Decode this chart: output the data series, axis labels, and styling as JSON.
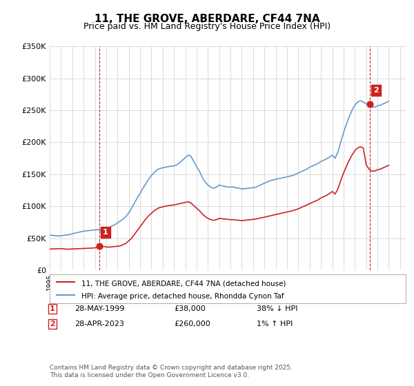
{
  "title": "11, THE GROVE, ABERDARE, CF44 7NA",
  "subtitle": "Price paid vs. HM Land Registry's House Price Index (HPI)",
  "ylabel": "",
  "xlabel": "",
  "ylim": [
    0,
    350000
  ],
  "xlim_start": 1995.0,
  "xlim_end": 2026.5,
  "yticks": [
    0,
    50000,
    100000,
    150000,
    200000,
    250000,
    300000,
    350000
  ],
  "ytick_labels": [
    "£0",
    "£50K",
    "£100K",
    "£150K",
    "£200K",
    "£250K",
    "£300K",
    "£350K"
  ],
  "hpi_color": "#6699cc",
  "price_color": "#cc2222",
  "vline_color": "#cc2222",
  "annotation_box_color": "#cc2222",
  "background_color": "#ffffff",
  "grid_color": "#cccccc",
  "legend_label_price": "11, THE GROVE, ABERDARE, CF44 7NA (detached house)",
  "legend_label_hpi": "HPI: Average price, detached house, Rhondda Cynon Taf",
  "sale1_date": "28-MAY-1999",
  "sale1_price": "£38,000",
  "sale1_note": "38% ↓ HPI",
  "sale1_year": 1999.41,
  "sale1_price_val": 38000,
  "sale2_date": "28-APR-2023",
  "sale2_price": "£260,000",
  "sale2_note": "1% ↑ HPI",
  "sale2_year": 2023.33,
  "sale2_price_val": 260000,
  "footnote": "Contains HM Land Registry data © Crown copyright and database right 2025.\nThis data is licensed under the Open Government Licence v3.0.",
  "hpi_years": [
    1995.0,
    1995.25,
    1995.5,
    1995.75,
    1996.0,
    1996.25,
    1996.5,
    1996.75,
    1997.0,
    1997.25,
    1997.5,
    1997.75,
    1998.0,
    1998.25,
    1998.5,
    1998.75,
    1999.0,
    1999.25,
    1999.5,
    1999.75,
    2000.0,
    2000.25,
    2000.5,
    2000.75,
    2001.0,
    2001.25,
    2001.5,
    2001.75,
    2002.0,
    2002.25,
    2002.5,
    2002.75,
    2003.0,
    2003.25,
    2003.5,
    2003.75,
    2004.0,
    2004.25,
    2004.5,
    2004.75,
    2005.0,
    2005.25,
    2005.5,
    2005.75,
    2006.0,
    2006.25,
    2006.5,
    2006.75,
    2007.0,
    2007.25,
    2007.5,
    2007.75,
    2008.0,
    2008.25,
    2008.5,
    2008.75,
    2009.0,
    2009.25,
    2009.5,
    2009.75,
    2010.0,
    2010.25,
    2010.5,
    2010.75,
    2011.0,
    2011.25,
    2011.5,
    2011.75,
    2012.0,
    2012.25,
    2012.5,
    2012.75,
    2013.0,
    2013.25,
    2013.5,
    2013.75,
    2014.0,
    2014.25,
    2014.5,
    2014.75,
    2015.0,
    2015.25,
    2015.5,
    2015.75,
    2016.0,
    2016.25,
    2016.5,
    2016.75,
    2017.0,
    2017.25,
    2017.5,
    2017.75,
    2018.0,
    2018.25,
    2018.5,
    2018.75,
    2019.0,
    2019.25,
    2019.5,
    2019.75,
    2020.0,
    2020.25,
    2020.5,
    2020.75,
    2021.0,
    2021.25,
    2021.5,
    2021.75,
    2022.0,
    2022.25,
    2022.5,
    2022.75,
    2023.0,
    2023.25,
    2023.5,
    2023.75,
    2024.0,
    2024.25,
    2024.5,
    2024.75,
    2025.0
  ],
  "hpi_values": [
    55000,
    54500,
    54000,
    53500,
    54000,
    54500,
    55000,
    55500,
    57000,
    58000,
    59000,
    60000,
    61000,
    61500,
    62000,
    62500,
    63000,
    63500,
    61500,
    63000,
    65000,
    67000,
    69000,
    71000,
    74000,
    77000,
    80000,
    84000,
    90000,
    97000,
    105000,
    113000,
    120000,
    128000,
    135000,
    142000,
    148000,
    153000,
    157000,
    159000,
    160000,
    161000,
    162000,
    162500,
    163000,
    165000,
    168000,
    172000,
    176000,
    180000,
    178000,
    170000,
    162000,
    155000,
    145000,
    138000,
    133000,
    130000,
    128000,
    130000,
    133000,
    132000,
    131000,
    130000,
    130000,
    130000,
    129000,
    128000,
    127000,
    127500,
    128000,
    128500,
    129000,
    130000,
    132000,
    134000,
    136000,
    138000,
    140000,
    141000,
    142000,
    143000,
    144000,
    145000,
    146000,
    147000,
    148000,
    150000,
    152000,
    154000,
    156000,
    158000,
    161000,
    163000,
    165000,
    167000,
    170000,
    172000,
    174000,
    177000,
    180000,
    175000,
    185000,
    200000,
    215000,
    228000,
    240000,
    250000,
    258000,
    263000,
    265000,
    263000,
    260000,
    258000,
    255000,
    255000,
    257000,
    258000,
    260000,
    262000,
    264000
  ],
  "price_years": [
    1995.0,
    1995.25,
    1995.5,
    1995.75,
    1996.0,
    1996.25,
    1996.5,
    1996.75,
    1997.0,
    1997.25,
    1997.5,
    1997.75,
    1998.0,
    1998.25,
    1998.5,
    1998.75,
    1999.0,
    1999.25,
    1999.5,
    1999.75,
    2000.0,
    2000.25,
    2000.5,
    2000.75,
    2001.0,
    2001.25,
    2001.5,
    2001.75,
    2002.0,
    2002.25,
    2002.5,
    2002.75,
    2003.0,
    2003.25,
    2003.5,
    2003.75,
    2004.0,
    2004.25,
    2004.5,
    2004.75,
    2005.0,
    2005.25,
    2005.5,
    2005.75,
    2006.0,
    2006.25,
    2006.5,
    2006.75,
    2007.0,
    2007.25,
    2007.5,
    2007.75,
    2008.0,
    2008.25,
    2008.5,
    2008.75,
    2009.0,
    2009.25,
    2009.5,
    2009.75,
    2010.0,
    2010.25,
    2010.5,
    2010.75,
    2011.0,
    2011.25,
    2011.5,
    2011.75,
    2012.0,
    2012.25,
    2012.5,
    2012.75,
    2013.0,
    2013.25,
    2013.5,
    2013.75,
    2014.0,
    2014.25,
    2014.5,
    2014.75,
    2015.0,
    2015.25,
    2015.5,
    2015.75,
    2016.0,
    2016.25,
    2016.5,
    2016.75,
    2017.0,
    2017.25,
    2017.5,
    2017.75,
    2018.0,
    2018.25,
    2018.5,
    2018.75,
    2019.0,
    2019.25,
    2019.5,
    2019.75,
    2020.0,
    2020.25,
    2020.5,
    2020.75,
    2021.0,
    2021.25,
    2021.5,
    2021.75,
    2022.0,
    2022.25,
    2022.5,
    2022.75,
    2023.0,
    2023.25,
    2023.5,
    2023.75,
    2024.0,
    2024.25,
    2024.5,
    2024.75,
    2025.0
  ],
  "price_values": [
    33000,
    33200,
    33400,
    33600,
    33800,
    33200,
    32800,
    33000,
    33200,
    33400,
    33600,
    33800,
    34000,
    34200,
    34400,
    34600,
    35000,
    35500,
    38000,
    37000,
    36500,
    36000,
    36500,
    37000,
    37500,
    38000,
    40000,
    42000,
    46000,
    50000,
    56000,
    62000,
    68000,
    74000,
    80000,
    85000,
    89000,
    93000,
    96000,
    98000,
    99000,
    100000,
    101000,
    101500,
    102000,
    103000,
    104000,
    105000,
    106000,
    107000,
    105000,
    101000,
    97000,
    93000,
    88000,
    84000,
    81000,
    79000,
    78000,
    79000,
    81000,
    80500,
    80000,
    79500,
    79000,
    79000,
    78500,
    78000,
    77500,
    78000,
    78500,
    79000,
    79500,
    80000,
    81000,
    82000,
    83000,
    84000,
    85000,
    86000,
    87000,
    88000,
    89000,
    90000,
    91000,
    92000,
    93000,
    94500,
    96000,
    98000,
    100000,
    102000,
    104000,
    106000,
    108000,
    110000,
    113000,
    115000,
    117000,
    120000,
    123000,
    119000,
    127000,
    140000,
    152000,
    162000,
    172000,
    180000,
    187000,
    191000,
    193000,
    191000,
    165000,
    158000,
    155000,
    155000,
    157000,
    158000,
    160000,
    162000,
    164000
  ]
}
